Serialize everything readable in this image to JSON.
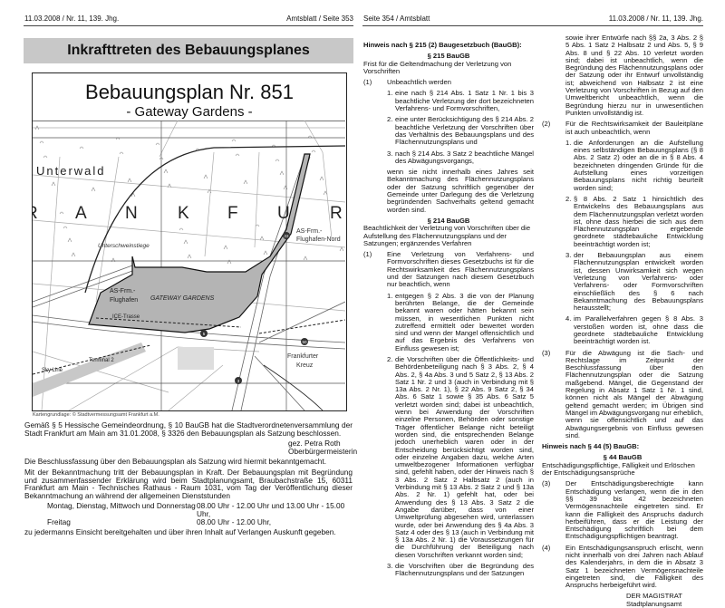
{
  "left_page": {
    "header_left": "11.03.2008 / Nr. 11, 139. Jhg.",
    "header_right": "Amtsblatt / Seite 353",
    "title": "Inkrafttreten des Bebauungsplanes",
    "map": {
      "title": "Bebauungsplan Nr. 851",
      "subtitle": "- Gateway Gardens -",
      "labels": {
        "unterwald": "Unterwald",
        "frankfurt": [
          "R",
          "A",
          "N",
          "K",
          "F",
          "U",
          "R"
        ],
        "unterschweinstiege": "Unterschweinstiege",
        "as_nord_1": "AS-Frm.-",
        "as_nord_2": "Flughafen-Nord",
        "as_flug_1": "AS-Frm.-",
        "as_flug_2": "Flughafen",
        "gateway": "GATEWAY GARDENS",
        "ice": "ICE-Trasse",
        "terminal": "Terminal 2",
        "skyline": "Sky Line",
        "kreuz_1": "Frankfurter",
        "kreuz_2": "Kreuz",
        "m5": "5",
        "m50": "50",
        "m3": "3",
        "m22": "22"
      },
      "area_color": "#b4b4b4"
    },
    "caption": "Kartengrundlage: © Stadtvermessungsamt Frankfurt a.M.",
    "p1": "Gemäß § 5 Hessische Gemeindeordnung, § 10 BauGB hat die Stadtverordnetenversammlung der Stadt Frankfurt am Main am 31.01.2008, § 3326 den Bebauungsplan als Satzung beschlossen.",
    "sig1": "gez. Petra Roth",
    "sig2": "Oberbürgermeisterin",
    "p2": "Die Beschlussfassung über den Bebauungsplan als Satzung wird hiermit bekanntgemacht.",
    "p3": "Mit der Bekanntmachung tritt der Bebauungsplan in Kraft. Der Bebauungsplan mit Begründung und zusammenfassender Erklärung wird beim Stadtplanungsamt, Braubachstraße 15, 60311 Frankfurt am Main - Technisches Rathaus - Raum 1031, vom Tag der Veröffentlichung dieser Bekanntmachung an während der allgemeinen Dienststunden",
    "hours": [
      {
        "days": "Montag, Dienstag, Mittwoch und Donnerstag",
        "time": "08.00 Uhr - 12.00 Uhr und 13.00 Uhr - 15.00 Uhr,"
      },
      {
        "days": "Freitag",
        "time": "08.00 Uhr - 12.00 Uhr,"
      }
    ],
    "p4": "zu jedermanns Einsicht bereitgehalten und über ihren Inhalt auf Verlangen Auskunft gegeben."
  },
  "right_page": {
    "header_left": "Seite 354 / Amtsblatt",
    "header_right": "11.03.2008 / Nr. 11, 139. Jhg.",
    "col1": {
      "heading": "Hinweis nach § 215 (2) Baugesetzbuch (BauGB):",
      "s215_title": "§ 215 BauGB",
      "s215_sub": "Frist für die Geltendmachung der Verletzung von Vorschriften",
      "s215_p1_num": "(1)",
      "s215_p1": "Unbeachtlich werden",
      "s215_items": [
        "eine nach § 214 Abs. 1 Satz 1 Nr. 1 bis 3 beachtliche Verletzung der dort bezeichneten Verfahrens- und Formvorschriften,",
        "eine unter Berücksichtigung des § 214 Abs. 2 beachtliche Verletzung der Vorschriften über das Verhältnis des Bebauungsplans und des Flächennutzungsplans und",
        "nach § 214 Abs. 3 Satz 2 beachtliche Mängel des Abwägungsvorgangs,"
      ],
      "s215_tail": "wenn sie nicht innerhalb eines Jahres seit Bekanntmachung des Flächennutzungsplans oder der Satzung schriftlich gegenüber der Gemeinde unter Darlegung des die Verletzung begründenden Sachverhalts geltend gemacht worden sind.",
      "s214_title": "§ 214 BauGB",
      "s214_sub": "Beachtlichkeit der Verletzung von Vorschriften über die Aufstellung des Flächennutzungsplans und der Satzungen; ergänzendes Verfahren",
      "s214_p1_num": "(1)",
      "s214_p1": "Eine Verletzung von Verfahrens- und Formvorschriften dieses Gesetzbuchs ist für die Rechtswirksamkeit des Flächennutzungsplans und der Satzungen nach diesem Gesetzbuch nur beachtlich, wenn",
      "s214_items": [
        "entgegen § 2 Abs. 3 die von der Planung berührten Belange, die der Gemeinde bekannt waren oder hätten bekannt sein müssen, in wesentlichen Punkten nicht zutreffend ermittelt oder bewertet worden sind und wenn der Mangel offensichtlich und auf das Ergebnis des Verfahrens von Einfluss gewesen ist;",
        "die Vorschriften über die Öffentlichkeits- und Behördenbeteiligung nach § 3 Abs. 2, § 4 Abs. 2, § 4a Abs. 3 und 5 Satz 2, § 13 Abs. 2 Satz 1 Nr. 2 und 3 (auch in Verbindung mit § 13a Abs. 2 Nr. 1), § 22 Abs. 9 Satz 2, § 34 Abs. 6 Satz 1 sowie § 35 Abs. 6 Satz 5 verletzt worden sind; dabei ist unbeachtlich, wenn bei Anwendung der Vorschriften einzelne Personen, Behörden oder sonstige Träger öffentlicher Belange nicht beteiligt worden sind, die entsprechenden Belange jedoch unerheblich waren oder in der Entscheidung berücksichtigt worden sind, oder einzelne Angaben dazu, welche Arten umweltbezogener Informationen verfügbar sind, gefehlt haben, oder der Hinweis nach § 3 Abs. 2 Satz 2 Halbsatz 2 (auch in Verbindung mit § 13 Abs. 2 Satz 2 und § 13a Abs. 2 Nr. 1) gefehlt hat, oder bei Anwendung des § 13 Abs. 3 Satz 2 die Angabe darüber, dass von einer Umweltprüfung abgesehen wird, unterlassen wurde, oder bei Anwendung des § 4a Abs. 3 Satz 4 oder des § 13 (auch in Verbindung mit § 13a Abs. 2 Nr. 1) die Voraussetzungen für die Durchführung der Beteiligung nach diesen Vorschriften verkannt worden sind;",
        "die Vorschriften über die Begründung des Flächennutzungsplans und der Satzungen"
      ]
    },
    "col2": {
      "cont": "sowie ihrer Entwürfe nach §§ 2a, 3 Abs. 2 § 5 Abs. 1 Satz 2 Halbsatz 2 und Abs. 5, § 9 Abs. 8 und § 22 Abs. 10 verletzt worden sind; dabei ist unbeachtlich, wenn die Begründung des Flächennutzungsplans oder der Satzung oder ihr Entwurf unvollständig ist; abweichend von Halbsatz 2 ist eine Verletzung von Vorschriften in Bezug auf den Umweltbericht unbeachtlich, wenn die Begründung hierzu nur in unwesentlichen Punkten unvollständig ist.",
      "p2_num": "(2)",
      "p2": "Für die Rechtswirksamkeit der Bauleitpläne ist auch unbeachtlich, wenn",
      "p2_items": [
        "die Anforderungen an die Aufstellung eines selbständigen Bebauungsplans (§ 8 Abs. 2 Satz 2) oder an die in § 8 Abs. 4 bezeichneten dringenden Gründe für die Aufstellung eines vorzeitigen Bebauungsplans nicht richtig beurteilt worden sind;",
        "§ 8 Abs. 2 Satz 1 hinsichtlich des Entwickelns des Bebauungsplans aus dem Flächennutzungsplan verletzt worden ist, ohne dass hierbei die sich aus dem Flächennutzungsplan ergebende geordnete städtebauliche Entwicklung beeinträchtigt worden ist;",
        "der Bebauungsplan aus einem Flächennutzungsplan entwickelt worden ist, dessen Unwirksamkeit sich wegen Verletzung von Verfahrens- oder Verfahrens- oder Formvorschriften einschließlich des § 6 nach Bekanntmachung des Bebauungsplans herausstellt;",
        "im Parallelverfahren gegen § 8 Abs. 3 verstoßen worden ist, ohne dass die geordnete städtebauliche Entwicklung beeinträchtigt worden ist."
      ],
      "p3_num": "(3)",
      "p3": "Für die Abwägung ist die Sach- und Rechtslage im Zeitpunkt der Beschlussfassung über den Flächennutzungsplan oder die Satzung maßgebend. Mängel, die Gegenstand der Regelung in Absatz 1 Satz 1 Nr. 1 sind, können nicht als Mängel der Abwägung geltend gemacht werden; im Übrigen sind Mängel im Abwägungsvorgang nur erheblich, wenn sie offensichtlich und auf das Abwägungsergebnis von Einfluss gewesen sind.",
      "heading44": "Hinweis nach § 44 (5) BauGB:",
      "s44_title": "§ 44 BauGB",
      "s44_sub": "Entschädigungspflichtige, Fälligkeit und Erlöschen der Entschädigungsansprüche",
      "s44_p3_num": "(3)",
      "s44_p3": "Der Entschädigungsberechtigte kann Entschädigung verlangen, wenn die in den §§ 39 bis 42 bezeichneten Vermögensnachteile eingetreten sind. Er kann die Fälligkeit des Anspruchs dadurch herbeiführen, dass er die Leistung der Entschädigung schriftlich bei dem Entschädigungspflichtigen beantragt.",
      "s44_p4_num": "(4)",
      "s44_p4": "Ein Entschädigungsanspruch erlischt, wenn nicht innerhalb von drei Jahren nach Ablauf des Kalenderjahrs, in dem die in Absatz 3 Satz 1 bezeichneten Vermögensnachteile eingetreten sind, die Fälligkeit des Anspruchs herbeigeführt wird.",
      "sig1": "DER MAGISTRAT",
      "sig2": "Stadtplanungsamt"
    }
  }
}
